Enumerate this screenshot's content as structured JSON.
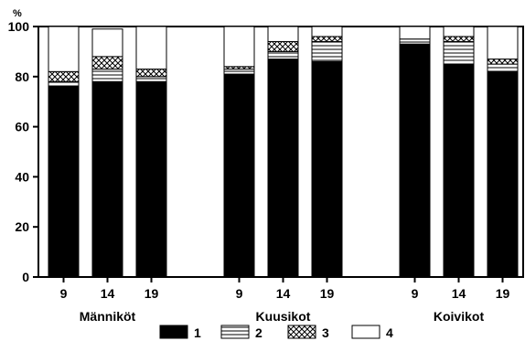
{
  "chart_data": {
    "type": "bar",
    "stacked": true,
    "y_unit_label": "%",
    "ylim": [
      0,
      100
    ],
    "yticks": [
      0,
      20,
      40,
      60,
      80,
      100
    ],
    "grid": false,
    "legend_position": "bottom",
    "series_names": [
      "1",
      "2",
      "3",
      "4"
    ],
    "series_fills": [
      "solid-black",
      "horizontal-lines",
      "crosshatch",
      "white"
    ],
    "groups": [
      {
        "name": "Männiköt",
        "bars": [
          {
            "label": "9",
            "values": [
              76,
              2,
              4,
              18
            ]
          },
          {
            "label": "14",
            "values": [
              78,
              5,
              5,
              11
            ]
          },
          {
            "label": "19",
            "values": [
              78,
              2,
              3,
              17
            ]
          }
        ]
      },
      {
        "name": "Kuusikot",
        "bars": [
          {
            "label": "9",
            "values": [
              81,
              2,
              1,
              16
            ]
          },
          {
            "label": "14",
            "values": [
              87,
              3,
              4,
              6
            ]
          },
          {
            "label": "19",
            "values": [
              86,
              8,
              2,
              4
            ]
          }
        ]
      },
      {
        "name": "Koivikot",
        "bars": [
          {
            "label": "9",
            "values": [
              93,
              2,
              0,
              5
            ]
          },
          {
            "label": "14",
            "values": [
              85,
              9,
              2,
              4
            ]
          },
          {
            "label": "19",
            "values": [
              82,
              3,
              2,
              13
            ]
          }
        ]
      }
    ]
  }
}
